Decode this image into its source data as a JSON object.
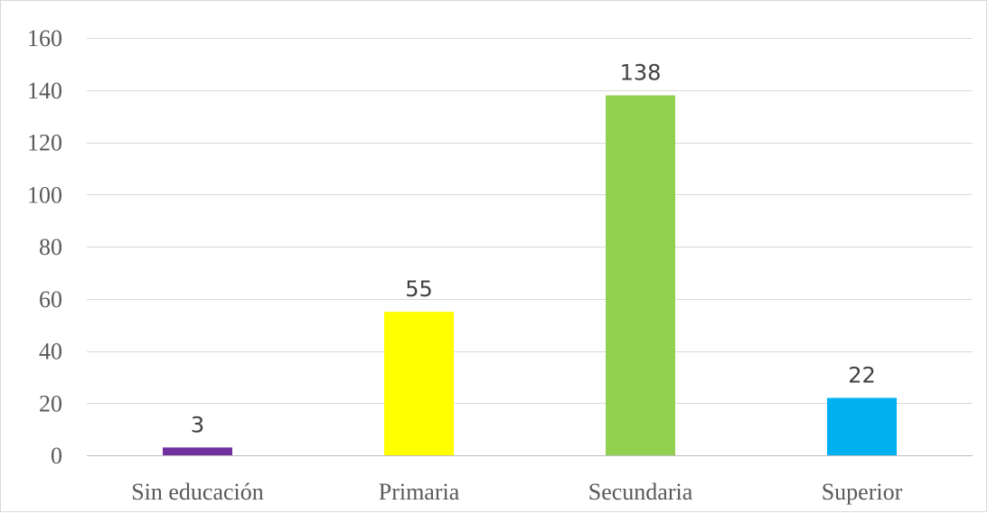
{
  "chart_data": {
    "type": "bar",
    "title": "",
    "xlabel": "",
    "ylabel": "",
    "categories": [
      "Sin educación",
      "Primaria",
      "Secundaria",
      "Superior"
    ],
    "values": [
      3,
      55,
      138,
      22
    ],
    "data_labels": [
      "3",
      "55",
      "138",
      "22"
    ],
    "colors": [
      "#7030a0",
      "#ffff00",
      "#92d050",
      "#00b0f0"
    ],
    "ylim": [
      0,
      160
    ],
    "yticks": [
      0,
      20,
      40,
      60,
      80,
      100,
      120,
      140,
      160
    ],
    "ytick_labels": [
      "0",
      "20",
      "40",
      "60",
      "80",
      "100",
      "120",
      "140",
      "160"
    ],
    "grid": true,
    "legend": "none"
  }
}
